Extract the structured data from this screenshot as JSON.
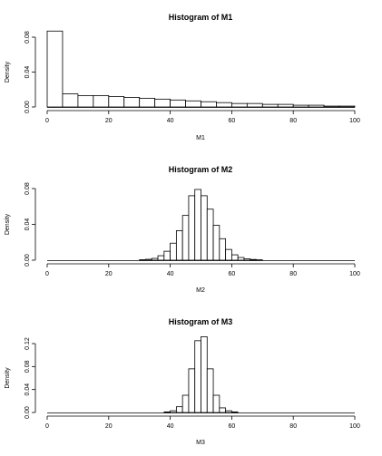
{
  "chart_data": [
    {
      "type": "bar",
      "title": "Histogram of M1",
      "xlabel": "M1",
      "ylabel": "Density",
      "xlim": [
        0,
        100
      ],
      "ylim": [
        0,
        0.09
      ],
      "xticks": [
        "0",
        "20",
        "40",
        "60",
        "80",
        "100"
      ],
      "yticks": [
        "0.00",
        "0.04",
        "0.08"
      ],
      "bins": [
        [
          0,
          5
        ],
        [
          5,
          10
        ],
        [
          10,
          15
        ],
        [
          15,
          20
        ],
        [
          20,
          25
        ],
        [
          25,
          30
        ],
        [
          30,
          35
        ],
        [
          35,
          40
        ],
        [
          40,
          45
        ],
        [
          45,
          50
        ],
        [
          50,
          55
        ],
        [
          55,
          60
        ],
        [
          60,
          65
        ],
        [
          65,
          70
        ],
        [
          70,
          75
        ],
        [
          75,
          80
        ],
        [
          80,
          85
        ],
        [
          85,
          90
        ],
        [
          90,
          95
        ],
        [
          95,
          100
        ]
      ],
      "values": [
        0.087,
        0.015,
        0.013,
        0.013,
        0.012,
        0.011,
        0.01,
        0.009,
        0.008,
        0.007,
        0.006,
        0.005,
        0.004,
        0.004,
        0.003,
        0.003,
        0.002,
        0.002,
        0.001,
        0.001
      ]
    },
    {
      "type": "bar",
      "title": "Histogram of M2",
      "xlabel": "M2",
      "ylabel": "Density",
      "xlim": [
        0,
        100
      ],
      "ylim": [
        0,
        0.08
      ],
      "xticks": [
        "0",
        "20",
        "40",
        "60",
        "80",
        "100"
      ],
      "yticks": [
        "0.00",
        "0.04",
        "0.08"
      ],
      "bins": [
        [
          30,
          32
        ],
        [
          32,
          34
        ],
        [
          34,
          36
        ],
        [
          36,
          38
        ],
        [
          38,
          40
        ],
        [
          40,
          42
        ],
        [
          42,
          44
        ],
        [
          44,
          46
        ],
        [
          46,
          48
        ],
        [
          48,
          50
        ],
        [
          50,
          52
        ],
        [
          52,
          54
        ],
        [
          54,
          56
        ],
        [
          56,
          58
        ],
        [
          58,
          60
        ],
        [
          60,
          62
        ],
        [
          62,
          64
        ],
        [
          64,
          66
        ],
        [
          66,
          68
        ],
        [
          68,
          70
        ]
      ],
      "values": [
        0.0005,
        0.001,
        0.002,
        0.005,
        0.01,
        0.019,
        0.033,
        0.05,
        0.072,
        0.079,
        0.072,
        0.057,
        0.039,
        0.024,
        0.012,
        0.006,
        0.003,
        0.0015,
        0.0008,
        0.0004
      ]
    },
    {
      "type": "bar",
      "title": "Histogram of M3",
      "xlabel": "M3",
      "ylabel": "Density",
      "xlim": [
        0,
        100
      ],
      "ylim": [
        0,
        0.14
      ],
      "xticks": [
        "0",
        "20",
        "40",
        "60",
        "80",
        "100"
      ],
      "yticks": [
        "0.00",
        "0.04",
        "0.08",
        "0.12"
      ],
      "bins": [
        [
          38,
          40
        ],
        [
          40,
          42
        ],
        [
          42,
          44
        ],
        [
          44,
          46
        ],
        [
          46,
          48
        ],
        [
          48,
          50
        ],
        [
          50,
          52
        ],
        [
          52,
          54
        ],
        [
          54,
          56
        ],
        [
          56,
          58
        ],
        [
          58,
          60
        ],
        [
          60,
          62
        ]
      ],
      "values": [
        0.001,
        0.003,
        0.01,
        0.03,
        0.076,
        0.125,
        0.132,
        0.076,
        0.03,
        0.008,
        0.003,
        0.001
      ]
    }
  ]
}
